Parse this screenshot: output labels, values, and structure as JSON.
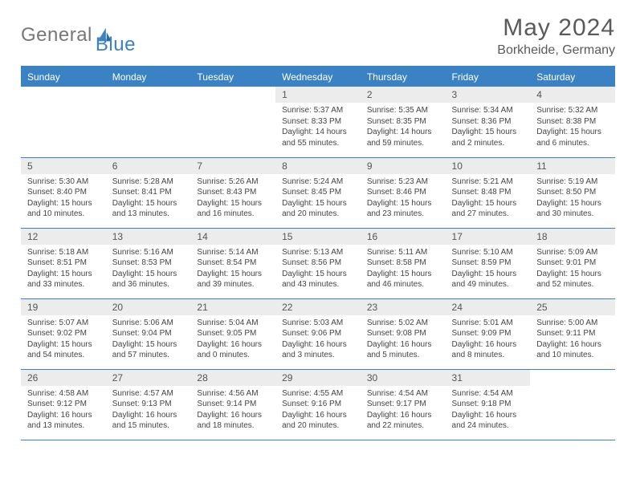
{
  "logo": {
    "text_gray": "General",
    "text_blue": "Blue"
  },
  "title": "May 2024",
  "location": "Borkheide, Germany",
  "colors": {
    "header_bg": "#3b82c4",
    "header_text": "#ffffff",
    "daynum_bg": "#ececec",
    "border": "#3b82c4",
    "page_bg": "#ffffff",
    "text": "#444444"
  },
  "weekdays": [
    "Sunday",
    "Monday",
    "Tuesday",
    "Wednesday",
    "Thursday",
    "Friday",
    "Saturday"
  ],
  "weeks": [
    [
      null,
      null,
      null,
      {
        "n": "1",
        "sr": "5:37 AM",
        "ss": "8:33 PM",
        "dl": "14 hours and 55 minutes."
      },
      {
        "n": "2",
        "sr": "5:35 AM",
        "ss": "8:35 PM",
        "dl": "14 hours and 59 minutes."
      },
      {
        "n": "3",
        "sr": "5:34 AM",
        "ss": "8:36 PM",
        "dl": "15 hours and 2 minutes."
      },
      {
        "n": "4",
        "sr": "5:32 AM",
        "ss": "8:38 PM",
        "dl": "15 hours and 6 minutes."
      }
    ],
    [
      {
        "n": "5",
        "sr": "5:30 AM",
        "ss": "8:40 PM",
        "dl": "15 hours and 10 minutes."
      },
      {
        "n": "6",
        "sr": "5:28 AM",
        "ss": "8:41 PM",
        "dl": "15 hours and 13 minutes."
      },
      {
        "n": "7",
        "sr": "5:26 AM",
        "ss": "8:43 PM",
        "dl": "15 hours and 16 minutes."
      },
      {
        "n": "8",
        "sr": "5:24 AM",
        "ss": "8:45 PM",
        "dl": "15 hours and 20 minutes."
      },
      {
        "n": "9",
        "sr": "5:23 AM",
        "ss": "8:46 PM",
        "dl": "15 hours and 23 minutes."
      },
      {
        "n": "10",
        "sr": "5:21 AM",
        "ss": "8:48 PM",
        "dl": "15 hours and 27 minutes."
      },
      {
        "n": "11",
        "sr": "5:19 AM",
        "ss": "8:50 PM",
        "dl": "15 hours and 30 minutes."
      }
    ],
    [
      {
        "n": "12",
        "sr": "5:18 AM",
        "ss": "8:51 PM",
        "dl": "15 hours and 33 minutes."
      },
      {
        "n": "13",
        "sr": "5:16 AM",
        "ss": "8:53 PM",
        "dl": "15 hours and 36 minutes."
      },
      {
        "n": "14",
        "sr": "5:14 AM",
        "ss": "8:54 PM",
        "dl": "15 hours and 39 minutes."
      },
      {
        "n": "15",
        "sr": "5:13 AM",
        "ss": "8:56 PM",
        "dl": "15 hours and 43 minutes."
      },
      {
        "n": "16",
        "sr": "5:11 AM",
        "ss": "8:58 PM",
        "dl": "15 hours and 46 minutes."
      },
      {
        "n": "17",
        "sr": "5:10 AM",
        "ss": "8:59 PM",
        "dl": "15 hours and 49 minutes."
      },
      {
        "n": "18",
        "sr": "5:09 AM",
        "ss": "9:01 PM",
        "dl": "15 hours and 52 minutes."
      }
    ],
    [
      {
        "n": "19",
        "sr": "5:07 AM",
        "ss": "9:02 PM",
        "dl": "15 hours and 54 minutes."
      },
      {
        "n": "20",
        "sr": "5:06 AM",
        "ss": "9:04 PM",
        "dl": "15 hours and 57 minutes."
      },
      {
        "n": "21",
        "sr": "5:04 AM",
        "ss": "9:05 PM",
        "dl": "16 hours and 0 minutes."
      },
      {
        "n": "22",
        "sr": "5:03 AM",
        "ss": "9:06 PM",
        "dl": "16 hours and 3 minutes."
      },
      {
        "n": "23",
        "sr": "5:02 AM",
        "ss": "9:08 PM",
        "dl": "16 hours and 5 minutes."
      },
      {
        "n": "24",
        "sr": "5:01 AM",
        "ss": "9:09 PM",
        "dl": "16 hours and 8 minutes."
      },
      {
        "n": "25",
        "sr": "5:00 AM",
        "ss": "9:11 PM",
        "dl": "16 hours and 10 minutes."
      }
    ],
    [
      {
        "n": "26",
        "sr": "4:58 AM",
        "ss": "9:12 PM",
        "dl": "16 hours and 13 minutes."
      },
      {
        "n": "27",
        "sr": "4:57 AM",
        "ss": "9:13 PM",
        "dl": "16 hours and 15 minutes."
      },
      {
        "n": "28",
        "sr": "4:56 AM",
        "ss": "9:14 PM",
        "dl": "16 hours and 18 minutes."
      },
      {
        "n": "29",
        "sr": "4:55 AM",
        "ss": "9:16 PM",
        "dl": "16 hours and 20 minutes."
      },
      {
        "n": "30",
        "sr": "4:54 AM",
        "ss": "9:17 PM",
        "dl": "16 hours and 22 minutes."
      },
      {
        "n": "31",
        "sr": "4:54 AM",
        "ss": "9:18 PM",
        "dl": "16 hours and 24 minutes."
      },
      null
    ]
  ],
  "labels": {
    "sunrise": "Sunrise:",
    "sunset": "Sunset:",
    "daylight": "Daylight:"
  }
}
